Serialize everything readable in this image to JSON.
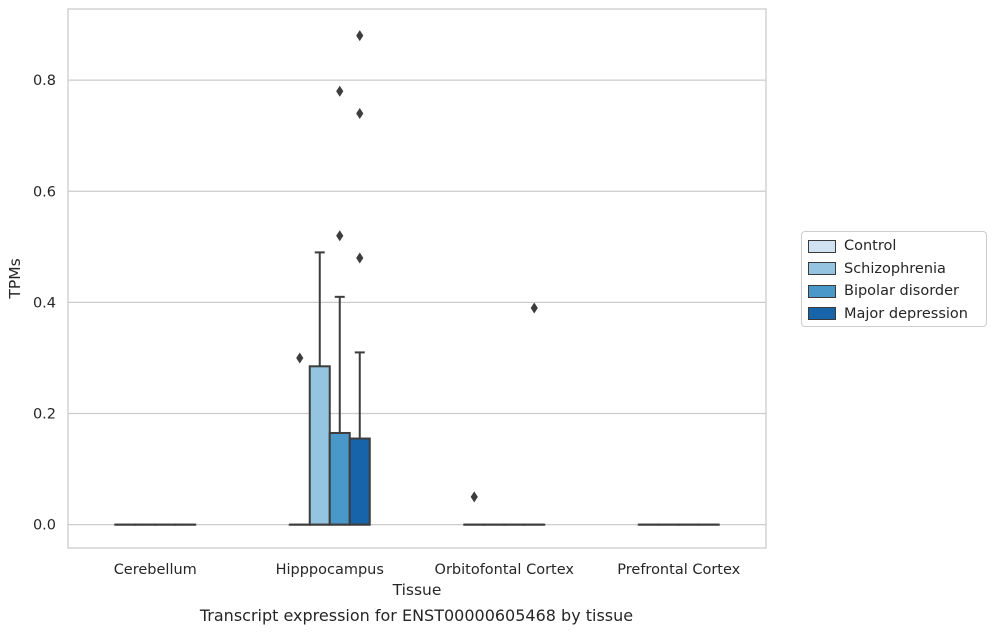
{
  "chart_data": {
    "type": "box",
    "xlabel": "Tissue",
    "ylabel": "TPMs",
    "caption": "Transcript expression for ENST00000605468 by tissue",
    "ylim": [
      -0.042,
      0.928
    ],
    "yticks": [
      0.0,
      0.2,
      0.4,
      0.6,
      0.8
    ],
    "ytick_labels": [
      "0.0",
      "0.2",
      "0.4",
      "0.6",
      "0.8"
    ],
    "grid": "horizontal",
    "legend_position": "right",
    "categories": [
      "Cerebellum",
      "Hipppocampus",
      "Orbitofontal Cortex",
      "Prefrontal Cortex"
    ],
    "series": [
      {
        "name": "Control",
        "color": "#d0e1f2",
        "boxes": [
          {
            "q1": 0.0,
            "median": 0.0,
            "q3": 0.0,
            "whisker_low": 0.0,
            "whisker_high": 0.0,
            "outliers": []
          },
          {
            "q1": 0.0,
            "median": 0.0,
            "q3": 0.0,
            "whisker_low": 0.0,
            "whisker_high": 0.0,
            "outliers": [
              0.3
            ]
          },
          {
            "q1": 0.0,
            "median": 0.0,
            "q3": 0.0,
            "whisker_low": 0.0,
            "whisker_high": 0.0,
            "outliers": [
              0.05
            ]
          },
          {
            "q1": 0.0,
            "median": 0.0,
            "q3": 0.0,
            "whisker_low": 0.0,
            "whisker_high": 0.0,
            "outliers": []
          }
        ]
      },
      {
        "name": "Schizophrenia",
        "color": "#94c4df",
        "boxes": [
          {
            "q1": 0.0,
            "median": 0.0,
            "q3": 0.0,
            "whisker_low": 0.0,
            "whisker_high": 0.0,
            "outliers": []
          },
          {
            "q1": 0.0,
            "median": 0.0,
            "q3": 0.285,
            "whisker_low": 0.0,
            "whisker_high": 0.49,
            "outliers": []
          },
          {
            "q1": 0.0,
            "median": 0.0,
            "q3": 0.0,
            "whisker_low": 0.0,
            "whisker_high": 0.0,
            "outliers": []
          },
          {
            "q1": 0.0,
            "median": 0.0,
            "q3": 0.0,
            "whisker_low": 0.0,
            "whisker_high": 0.0,
            "outliers": []
          }
        ]
      },
      {
        "name": "Bipolar disorder",
        "color": "#4a98c9",
        "boxes": [
          {
            "q1": 0.0,
            "median": 0.0,
            "q3": 0.0,
            "whisker_low": 0.0,
            "whisker_high": 0.0,
            "outliers": []
          },
          {
            "q1": 0.0,
            "median": 0.0,
            "q3": 0.165,
            "whisker_low": 0.0,
            "whisker_high": 0.41,
            "outliers": [
              0.52,
              0.78
            ]
          },
          {
            "q1": 0.0,
            "median": 0.0,
            "q3": 0.0,
            "whisker_low": 0.0,
            "whisker_high": 0.0,
            "outliers": []
          },
          {
            "q1": 0.0,
            "median": 0.0,
            "q3": 0.0,
            "whisker_low": 0.0,
            "whisker_high": 0.0,
            "outliers": []
          }
        ]
      },
      {
        "name": "Major depression",
        "color": "#1764ab",
        "boxes": [
          {
            "q1": 0.0,
            "median": 0.0,
            "q3": 0.0,
            "whisker_low": 0.0,
            "whisker_high": 0.0,
            "outliers": []
          },
          {
            "q1": 0.0,
            "median": 0.0,
            "q3": 0.155,
            "whisker_low": 0.0,
            "whisker_high": 0.31,
            "outliers": [
              0.48,
              0.74,
              0.88
            ]
          },
          {
            "q1": 0.0,
            "median": 0.0,
            "q3": 0.0,
            "whisker_low": 0.0,
            "whisker_high": 0.0,
            "outliers": [
              0.39
            ]
          },
          {
            "q1": 0.0,
            "median": 0.0,
            "q3": 0.0,
            "whisker_low": 0.0,
            "whisker_high": 0.0,
            "outliers": []
          }
        ]
      }
    ]
  }
}
